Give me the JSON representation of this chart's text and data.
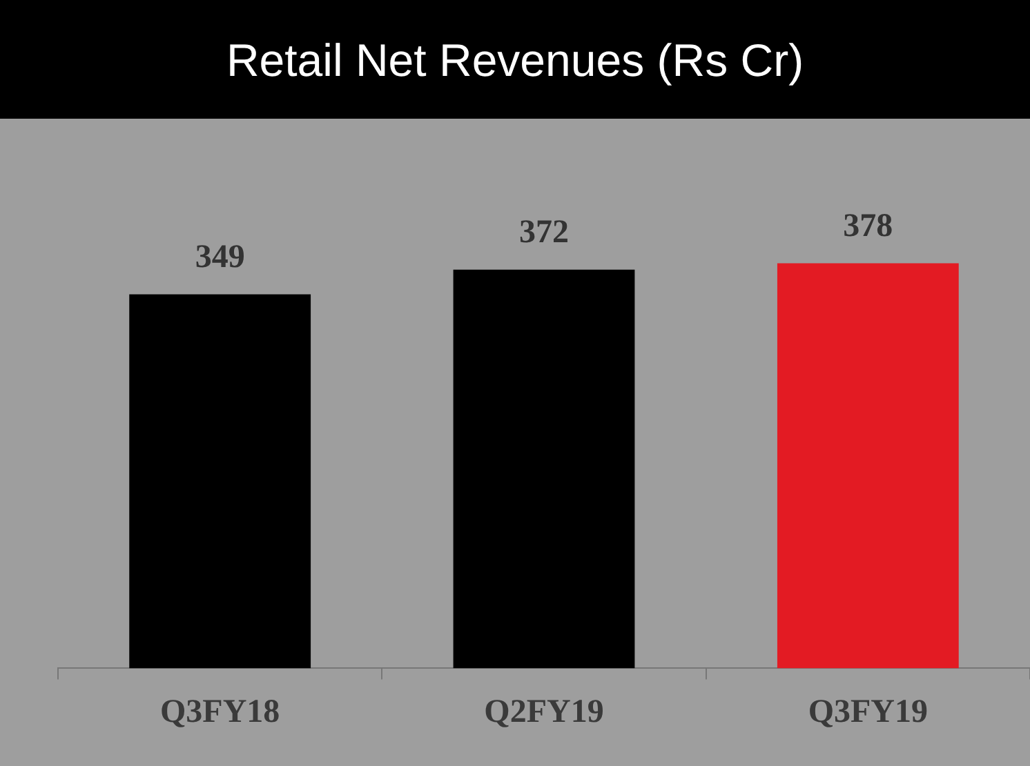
{
  "chart_data": {
    "type": "bar",
    "title": "Retail Net Revenues (Rs Cr)",
    "categories": [
      "Q3FY18",
      "Q2FY19",
      "Q3FY19"
    ],
    "values": [
      349,
      372,
      378
    ],
    "colors": [
      "#000000",
      "#000000",
      "#e31b23"
    ],
    "data_labels": true,
    "grid": false,
    "legend": false
  }
}
